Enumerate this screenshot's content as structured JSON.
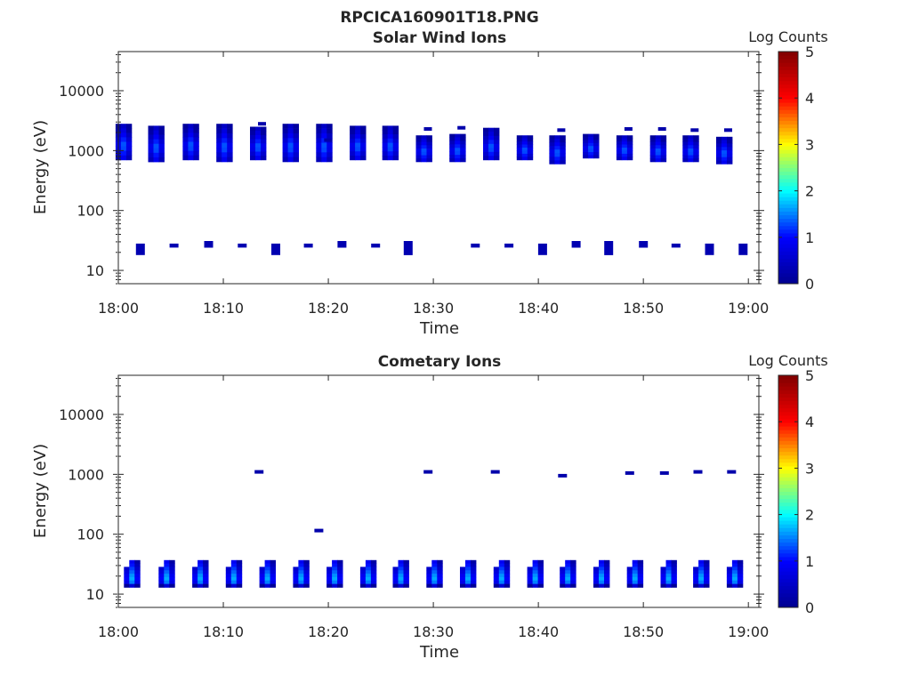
{
  "figure": {
    "suptitle": "RPCICA160901T18.PNG"
  },
  "colormap": [
    "#00008f",
    "#0000ff",
    "#00ffff",
    "#ffff00",
    "#ff0000",
    "#800000"
  ],
  "chart_data": [
    {
      "type": "heatmap",
      "title": "Solar Wind Ions",
      "xlabel": "Time",
      "ylabel": "Energy (eV)",
      "colorbar_label": "Log Counts",
      "colorbar_ticks": [
        "0",
        "1",
        "2",
        "3",
        "4",
        "5"
      ],
      "clim": [
        0,
        5
      ],
      "x_ticks": [
        "18:00",
        "18:10",
        "18:20",
        "18:30",
        "18:40",
        "18:50",
        "19:00"
      ],
      "y_ticks": [
        "10",
        "100",
        "1000",
        "10000"
      ],
      "y_scale": "log",
      "xlim_minutes": [
        0,
        61
      ],
      "ylim": [
        6,
        45000
      ],
      "scans_minutes": [
        0.5,
        3.6,
        6.9,
        10.1,
        13.3,
        16.4,
        19.6,
        22.8,
        25.9,
        29.1,
        32.3,
        35.5,
        38.7,
        41.8,
        45.0,
        48.2,
        51.4,
        54.5,
        57.7
      ],
      "upper_band": [
        {
          "t": 0.5,
          "lo": 700,
          "hi": 2800,
          "tick": null
        },
        {
          "t": 3.6,
          "lo": 650,
          "hi": 2600,
          "tick": null
        },
        {
          "t": 6.9,
          "lo": 700,
          "hi": 2800,
          "tick": null
        },
        {
          "t": 10.1,
          "lo": 650,
          "hi": 2800,
          "tick": null
        },
        {
          "t": 13.3,
          "lo": 700,
          "hi": 2500,
          "tick": 2800
        },
        {
          "t": 16.4,
          "lo": 650,
          "hi": 2800,
          "tick": null
        },
        {
          "t": 19.6,
          "lo": 650,
          "hi": 2800,
          "tick": 1500
        },
        {
          "t": 22.8,
          "lo": 700,
          "hi": 2600,
          "tick": null
        },
        {
          "t": 25.9,
          "lo": 700,
          "hi": 2600,
          "tick": null
        },
        {
          "t": 29.1,
          "lo": 650,
          "hi": 1800,
          "tick": 2300
        },
        {
          "t": 32.3,
          "lo": 650,
          "hi": 1900,
          "tick": 2400
        },
        {
          "t": 35.5,
          "lo": 700,
          "hi": 2400,
          "tick": null
        },
        {
          "t": 38.7,
          "lo": 700,
          "hi": 1800,
          "tick": null
        },
        {
          "t": 41.8,
          "lo": 600,
          "hi": 1800,
          "tick": 2200
        },
        {
          "t": 45.0,
          "lo": 750,
          "hi": 1900,
          "tick": null
        },
        {
          "t": 48.2,
          "lo": 700,
          "hi": 1800,
          "tick": 2300
        },
        {
          "t": 51.4,
          "lo": 650,
          "hi": 1800,
          "tick": 2300
        },
        {
          "t": 54.5,
          "lo": 650,
          "hi": 1800,
          "tick": 2200
        },
        {
          "t": 57.7,
          "lo": 600,
          "hi": 1700,
          "tick": 2200
        }
      ],
      "lower_band": [
        {
          "t": 2.1,
          "lo": 18,
          "hi": 28
        },
        {
          "t": 5.3,
          "lo": 24,
          "hi": 28
        },
        {
          "t": 8.6,
          "lo": 24,
          "hi": 31
        },
        {
          "t": 11.8,
          "lo": 24,
          "hi": 28
        },
        {
          "t": 15.0,
          "lo": 18,
          "hi": 28
        },
        {
          "t": 18.1,
          "lo": 24,
          "hi": 28
        },
        {
          "t": 21.3,
          "lo": 24,
          "hi": 31
        },
        {
          "t": 24.5,
          "lo": 24,
          "hi": 28
        },
        {
          "t": 27.6,
          "lo": 18,
          "hi": 31
        },
        {
          "t": 34.0,
          "lo": 24,
          "hi": 28
        },
        {
          "t": 37.2,
          "lo": 24,
          "hi": 28
        },
        {
          "t": 40.4,
          "lo": 18,
          "hi": 28
        },
        {
          "t": 43.6,
          "lo": 24,
          "hi": 31
        },
        {
          "t": 46.7,
          "lo": 18,
          "hi": 31
        },
        {
          "t": 50.0,
          "lo": 24,
          "hi": 31
        },
        {
          "t": 53.1,
          "lo": 24,
          "hi": 28
        },
        {
          "t": 56.3,
          "lo": 18,
          "hi": 28
        },
        {
          "t": 59.5,
          "lo": 18,
          "hi": 28
        }
      ]
    },
    {
      "type": "heatmap",
      "title": "Cometary Ions",
      "xlabel": "Time",
      "ylabel": "Energy (eV)",
      "colorbar_label": "Log Counts",
      "colorbar_ticks": [
        "0",
        "1",
        "2",
        "3",
        "4",
        "5"
      ],
      "clim": [
        0,
        5
      ],
      "x_ticks": [
        "18:00",
        "18:10",
        "18:20",
        "18:30",
        "18:40",
        "18:50",
        "19:00"
      ],
      "y_ticks": [
        "10",
        "100",
        "1000",
        "10000"
      ],
      "y_scale": "log",
      "xlim_minutes": [
        0,
        61
      ],
      "ylim": [
        6,
        45000
      ],
      "scans_minutes": [
        1.3,
        4.6,
        7.8,
        11.0,
        14.2,
        17.4,
        20.6,
        23.8,
        26.9,
        30.1,
        33.3,
        36.5,
        39.7,
        42.8,
        46.0,
        49.2,
        52.4,
        55.5,
        58.7
      ],
      "ion_band": {
        "lo": 13,
        "hi": 37
      },
      "isolated_marks": [
        {
          "t": 13.4,
          "e": 1100
        },
        {
          "t": 19.1,
          "e": 115
        },
        {
          "t": 29.5,
          "e": 1100
        },
        {
          "t": 35.9,
          "e": 1100
        },
        {
          "t": 42.3,
          "e": 950
        },
        {
          "t": 48.7,
          "e": 1050
        },
        {
          "t": 52.0,
          "e": 1050
        },
        {
          "t": 55.2,
          "e": 1100
        },
        {
          "t": 58.4,
          "e": 1100
        }
      ]
    }
  ]
}
